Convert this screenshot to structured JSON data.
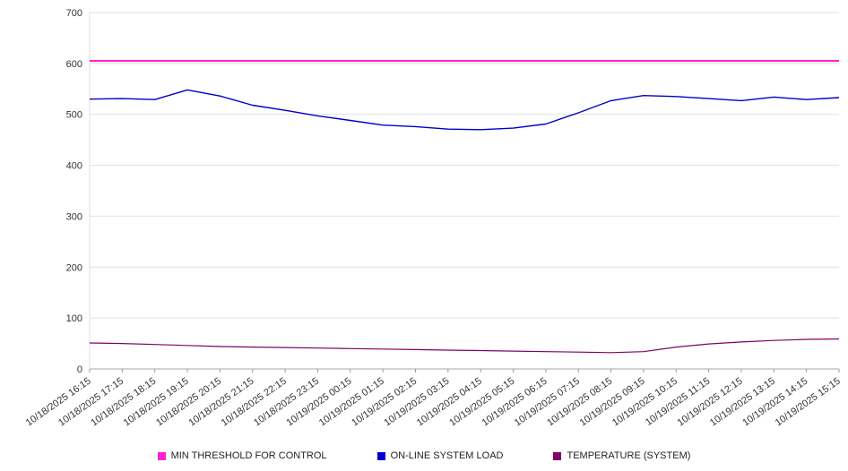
{
  "chart_data": {
    "type": "line",
    "title": "",
    "xlabel": "",
    "ylabel": "",
    "ylim": [
      0,
      700
    ],
    "yticks": [
      0,
      100,
      200,
      300,
      400,
      500,
      600,
      700
    ],
    "grid": true,
    "legend_position": "bottom",
    "x": [
      "10/18/2025 16:15",
      "10/18/2025 17:15",
      "10/18/2025 18:15",
      "10/18/2025 19:15",
      "10/18/2025 20:15",
      "10/18/2025 21:15",
      "10/18/2025 22:15",
      "10/18/2025 23:15",
      "10/19/2025 00:15",
      "10/19/2025 01:15",
      "10/19/2025 02:15",
      "10/19/2025 03:15",
      "10/19/2025 04:15",
      "10/19/2025 05:15",
      "10/19/2025 06:15",
      "10/19/2025 07:15",
      "10/19/2025 08:15",
      "10/19/2025 09:15",
      "10/19/2025 10:15",
      "10/19/2025 11:15",
      "10/19/2025 12:15",
      "10/19/2025 13:15",
      "10/19/2025 14:15",
      "10/19/2025 15:15"
    ],
    "series": [
      {
        "name": "MIN THRESHOLD FOR CONTROL",
        "color": "#ff22cc",
        "stroke_width": 2,
        "values": [
          605,
          605,
          605,
          605,
          605,
          605,
          605,
          605,
          605,
          605,
          605,
          605,
          605,
          605,
          605,
          605,
          605,
          605,
          605,
          605,
          605,
          605,
          605,
          605
        ]
      },
      {
        "name": "ON-LINE SYSTEM LOAD",
        "color": "#0000cc",
        "stroke_width": 1.4,
        "values": [
          530,
          531,
          529,
          548,
          536,
          518,
          508,
          497,
          488,
          479,
          476,
          471,
          470,
          473,
          481,
          503,
          527,
          537,
          535,
          531,
          527,
          534,
          529,
          533
        ]
      },
      {
        "name": "TEMPERATURE (SYSTEM)",
        "color": "#800066",
        "stroke_width": 1.2,
        "values": [
          51,
          50,
          48,
          46,
          44,
          43,
          42,
          41,
          40,
          39,
          38,
          37,
          36,
          35,
          34,
          33,
          32,
          34,
          43,
          49,
          53,
          56,
          58,
          59
        ]
      }
    ]
  },
  "axes": {
    "tick_color": "#333333",
    "grid_color": "#e0e0e0",
    "axis_color": "#aaaaaa"
  }
}
